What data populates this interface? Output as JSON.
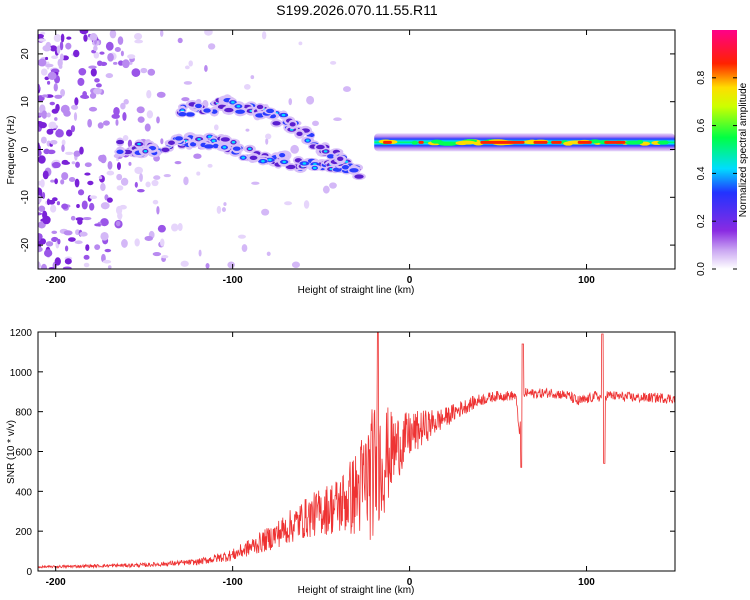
{
  "title": "S199.2026.070.11.55.R11",
  "colors": {
    "series": "#ee3333",
    "axis": "#000000"
  },
  "chart_data": [
    {
      "type": "heatmap",
      "title": "",
      "xlabel": "Height of straight line (km)",
      "ylabel": "Frequency (Hz)",
      "xlim": [
        -210,
        150
      ],
      "ylim": [
        -25,
        25
      ],
      "xticks": [
        -200,
        -100,
        0,
        100
      ],
      "yticks": [
        -20,
        -10,
        0,
        10,
        20
      ],
      "xtick_labels": [
        "-200",
        "-100",
        "0",
        "100"
      ],
      "ytick_labels": [
        "-20",
        "-10",
        "0",
        "10",
        "20"
      ],
      "colorbar": {
        "label": "Normalized spectral amplitude",
        "range": [
          0,
          1
        ],
        "ticks": [
          0.0,
          0.2,
          0.4,
          0.6,
          0.8
        ],
        "tick_labels": [
          "0.0",
          "0.2",
          "0.4",
          "0.6",
          "0.8"
        ],
        "colormap": [
          "#ffffff",
          "#8a2be2",
          "#2233ff",
          "#00ddff",
          "#00ff44",
          "#ffff00",
          "#ff2200",
          "#ff0088"
        ]
      },
      "description_points": {
        "strong_band": {
          "x_range": [
            -20,
            150
          ],
          "freq_center": 1.5,
          "amplitude": 0.75
        },
        "upper_branch": {
          "x": [
            -130,
            -115,
            -100,
            -85,
            -70,
            -55,
            -40,
            -28
          ],
          "freq": [
            8,
            9,
            9.5,
            8,
            6,
            2,
            -2,
            -5
          ]
        },
        "lower_branch": {
          "x": [
            -165,
            -150,
            -135,
            -120,
            -105,
            -90,
            -75,
            -60,
            -45,
            -30
          ],
          "freq": [
            0.5,
            0,
            1,
            2,
            1,
            -1,
            -2,
            -3,
            -3,
            -4
          ]
        }
      }
    },
    {
      "type": "line",
      "title": "",
      "xlabel": "Height of straight line (km)",
      "ylabel": "SNR (10 * v/v)",
      "xlim": [
        -210,
        150
      ],
      "ylim": [
        0,
        1200
      ],
      "xticks": [
        -200,
        -100,
        0,
        100
      ],
      "yticks": [
        0,
        200,
        400,
        600,
        800,
        1000,
        1200
      ],
      "xtick_labels": [
        "-200",
        "-100",
        "0",
        "100"
      ],
      "ytick_labels": [
        "0",
        "200",
        "400",
        "600",
        "800",
        "1000",
        "1200"
      ],
      "series": [
        {
          "name": "SNR",
          "x": [
            -210,
            -180,
            -150,
            -120,
            -100,
            -90,
            -80,
            -70,
            -60,
            -50,
            -40,
            -30,
            -25,
            -20,
            -15,
            -10,
            -5,
            0,
            10,
            20,
            30,
            40,
            50,
            60,
            62,
            65,
            70,
            80,
            90,
            95,
            100,
            105,
            108,
            110,
            115,
            120,
            130,
            140,
            150
          ],
          "y": [
            20,
            25,
            30,
            45,
            80,
            120,
            160,
            210,
            260,
            300,
            330,
            390,
            450,
            500,
            560,
            600,
            640,
            680,
            730,
            770,
            820,
            860,
            880,
            880,
            700,
            895,
            890,
            895,
            880,
            850,
            860,
            880,
            870,
            885,
            880,
            875,
            870,
            870,
            865
          ],
          "noise": [
            5,
            8,
            10,
            15,
            30,
            45,
            60,
            80,
            100,
            120,
            150,
            220,
            300,
            350,
            300,
            200,
            150,
            120,
            80,
            50,
            40,
            30,
            25,
            25,
            20,
            25,
            25,
            25,
            25,
            30,
            25,
            25,
            25,
            25,
            25,
            25,
            25,
            25,
            25
          ]
        }
      ]
    }
  ]
}
